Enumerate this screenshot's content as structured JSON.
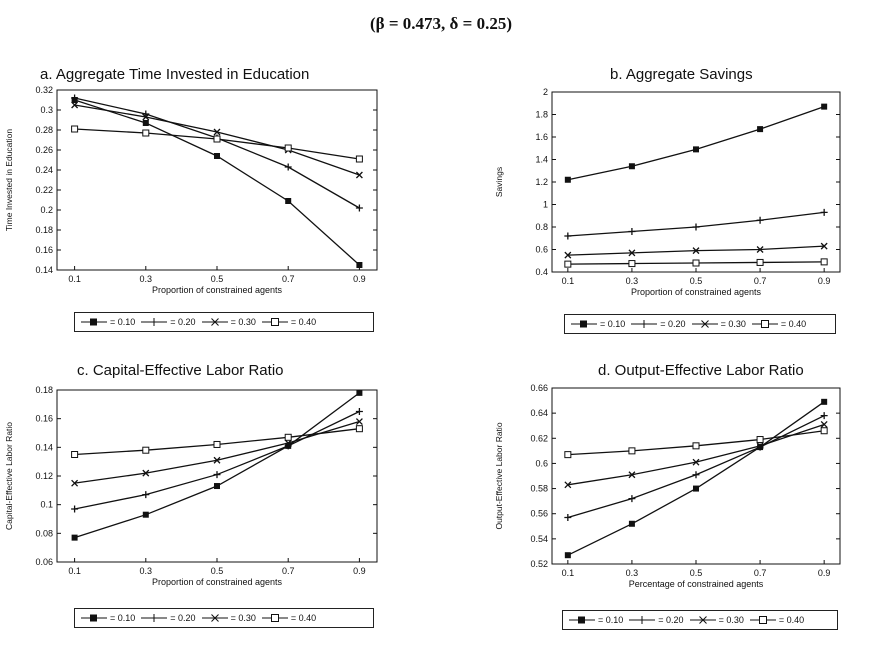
{
  "header": "(β = 0.473, δ = 0.25)",
  "chart_data": [
    {
      "type": "line",
      "title": "a. Aggregate Time Invested in Education",
      "xlabel": "Proportion of constrained agents",
      "ylabel": "Time Invested in Education",
      "x": [
        0.1,
        0.3,
        0.5,
        0.7,
        0.9
      ],
      "ylim": [
        0.14,
        0.32
      ],
      "yticks": [
        "0.14",
        "0.16",
        "0.18",
        "0.2",
        "0.22",
        "0.24",
        "0.26",
        "0.28",
        "0.3",
        "0.32"
      ],
      "xticks": [
        "0.1",
        "0.3",
        "0.5",
        "0.7",
        "0.9"
      ],
      "series": [
        {
          "name": "= 0.10",
          "marker": "filled-square",
          "values": [
            0.31,
            0.287,
            0.254,
            0.209,
            0.145
          ]
        },
        {
          "name": "= 0.20",
          "marker": "plus",
          "values": [
            0.312,
            0.296,
            0.272,
            0.243,
            0.202
          ]
        },
        {
          "name": "= 0.30",
          "marker": "x",
          "values": [
            0.305,
            0.293,
            0.278,
            0.26,
            0.235
          ]
        },
        {
          "name": "= 0.40",
          "marker": "open-square",
          "values": [
            0.281,
            0.277,
            0.271,
            0.262,
            0.251
          ]
        }
      ]
    },
    {
      "type": "line",
      "title": "b. Aggregate Savings",
      "xlabel": "Proportion of constrained agents",
      "ylabel": "Savings",
      "x": [
        0.1,
        0.3,
        0.5,
        0.7,
        0.9
      ],
      "ylim": [
        0.4,
        2
      ],
      "yticks": [
        "0.4",
        "0.6",
        "0.8",
        "1",
        "1.2",
        "1.4",
        "1.6",
        "1.8",
        "2"
      ],
      "xticks": [
        "0.1",
        "0.3",
        "0.5",
        "0.7",
        "0.9"
      ],
      "series": [
        {
          "name": "= 0.10",
          "marker": "filled-square",
          "values": [
            1.22,
            1.34,
            1.49,
            1.67,
            1.87
          ]
        },
        {
          "name": "= 0.20",
          "marker": "plus",
          "values": [
            0.72,
            0.76,
            0.8,
            0.86,
            0.93
          ]
        },
        {
          "name": "= 0.30",
          "marker": "x",
          "values": [
            0.55,
            0.57,
            0.59,
            0.6,
            0.63
          ]
        },
        {
          "name": "= 0.40",
          "marker": "open-square",
          "values": [
            0.47,
            0.475,
            0.48,
            0.485,
            0.49
          ]
        }
      ]
    },
    {
      "type": "line",
      "title": "c. Capital-Effective Labor Ratio",
      "xlabel": "Proportion of constrained agents",
      "ylabel": "Capital-Effective Labor Ratio",
      "x": [
        0.1,
        0.3,
        0.5,
        0.7,
        0.9
      ],
      "ylim": [
        0.06,
        0.18
      ],
      "yticks": [
        "0.06",
        "0.08",
        "0.1",
        "0.12",
        "0.14",
        "0.16",
        "0.18"
      ],
      "xticks": [
        "0.1",
        "0.3",
        "0.5",
        "0.7",
        "0.9"
      ],
      "series": [
        {
          "name": "= 0.10",
          "marker": "filled-square",
          "values": [
            0.077,
            0.093,
            0.113,
            0.141,
            0.178
          ]
        },
        {
          "name": "= 0.20",
          "marker": "plus",
          "values": [
            0.097,
            0.107,
            0.121,
            0.141,
            0.165
          ]
        },
        {
          "name": "= 0.30",
          "marker": "x",
          "values": [
            0.115,
            0.122,
            0.131,
            0.143,
            0.158
          ]
        },
        {
          "name": "= 0.40",
          "marker": "open-square",
          "values": [
            0.135,
            0.138,
            0.142,
            0.147,
            0.153
          ]
        }
      ]
    },
    {
      "type": "line",
      "title": "d. Output-Effective Labor Ratio",
      "xlabel": "Percentage of constrained agents",
      "ylabel": "Output-Effective Labor Ratio",
      "x": [
        0.1,
        0.3,
        0.5,
        0.7,
        0.9
      ],
      "ylim": [
        0.52,
        0.66
      ],
      "yticks": [
        "0.52",
        "0.54",
        "0.56",
        "0.58",
        "0.6",
        "0.62",
        "0.64",
        "0.66"
      ],
      "xticks": [
        "0.1",
        "0.3",
        "0.5",
        "0.7",
        "0.9"
      ],
      "series": [
        {
          "name": "= 0.10",
          "marker": "filled-square",
          "values": [
            0.527,
            0.552,
            0.58,
            0.613,
            0.649
          ]
        },
        {
          "name": "= 0.20",
          "marker": "plus",
          "values": [
            0.557,
            0.572,
            0.591,
            0.613,
            0.638
          ]
        },
        {
          "name": "= 0.30",
          "marker": "x",
          "values": [
            0.583,
            0.591,
            0.601,
            0.614,
            0.631
          ]
        },
        {
          "name": "= 0.40",
          "marker": "open-square",
          "values": [
            0.607,
            0.61,
            0.614,
            0.619,
            0.626
          ]
        }
      ]
    }
  ]
}
